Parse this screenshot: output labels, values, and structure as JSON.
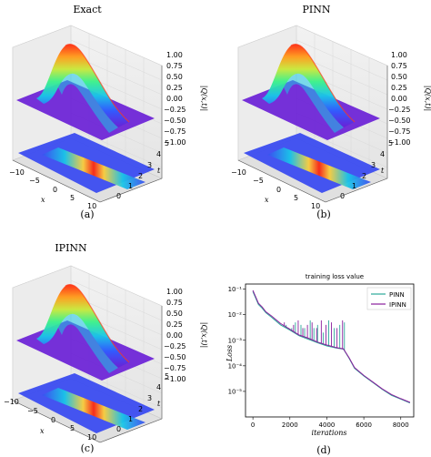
{
  "panels": [
    {
      "title": "Exact",
      "caption": "(a)"
    },
    {
      "title": "PINN",
      "caption": "(b)"
    },
    {
      "title": "IPINN",
      "caption": "(c)"
    }
  ],
  "surface_axes": {
    "x_label": "x",
    "t_label": "t",
    "z_label": "|Q(x,t)|",
    "x_ticks": [
      "−10",
      "−5",
      "0",
      "5",
      "10"
    ],
    "t_ticks": [
      "0",
      "1",
      "2",
      "3",
      "4",
      "5"
    ],
    "z_ticks": [
      "1.00",
      "0.75",
      "0.50",
      "0.25",
      "0.00",
      "−0.25",
      "−0.50",
      "−0.75",
      "−1.00"
    ]
  },
  "colors": {
    "pinn": "#2ca89a",
    "ipinn": "#8a1e9c",
    "colormap": [
      "#6a1fd6",
      "#2f5cff",
      "#19c6e8",
      "#3af08a",
      "#c8e83a",
      "#ff9a1a",
      "#ff2a10"
    ]
  },
  "chart_data": {
    "type": "line",
    "title": "training loss value",
    "xlabel": "iterations",
    "ylabel": "Loss",
    "caption": "(d)",
    "xlim": [
      -400,
      8700
    ],
    "ylim_log10": [
      -6,
      -0.8
    ],
    "x_ticks": [
      0,
      2000,
      4000,
      6000,
      8000
    ],
    "y_ticks": [
      {
        "exp": -1,
        "label": "10⁻¹"
      },
      {
        "exp": -2,
        "label": "10⁻²"
      },
      {
        "exp": -3,
        "label": "10⁻³"
      },
      {
        "exp": -4,
        "label": "10⁻⁴"
      },
      {
        "exp": -5,
        "label": "10⁻⁵"
      }
    ],
    "log_scale_y": true,
    "legend_position": "top-right",
    "series": [
      {
        "name": "PINN",
        "color": "#2ca89a",
        "points": [
          [
            0,
            0.08
          ],
          [
            150,
            0.045
          ],
          [
            300,
            0.025
          ],
          [
            500,
            0.018
          ],
          [
            700,
            0.012
          ],
          [
            1000,
            0.008
          ],
          [
            1500,
            0.004
          ],
          [
            2000,
            0.0025
          ],
          [
            2500,
            0.0015
          ],
          [
            3000,
            0.0011
          ],
          [
            3500,
            0.0008
          ],
          [
            4000,
            0.0006
          ],
          [
            4500,
            0.0005
          ],
          [
            4900,
            0.00045
          ],
          [
            5200,
            0.0002
          ],
          [
            5500,
            8e-05
          ],
          [
            6000,
            4e-05
          ],
          [
            6500,
            2.2e-05
          ],
          [
            7000,
            1.2e-05
          ],
          [
            7500,
            7e-06
          ],
          [
            8000,
            5e-06
          ],
          [
            8500,
            3.5e-06
          ]
        ],
        "spikes": [
          [
            1800,
            0.004
          ],
          [
            2100,
            0.003
          ],
          [
            2300,
            0.005
          ],
          [
            2600,
            0.004
          ],
          [
            2800,
            0.003
          ],
          [
            3100,
            0.006
          ],
          [
            3300,
            0.003
          ],
          [
            3500,
            0.004
          ],
          [
            3800,
            0.002
          ],
          [
            4100,
            0.006
          ],
          [
            4400,
            0.003
          ],
          [
            4700,
            0.004
          ],
          [
            4950,
            0.005
          ]
        ]
      },
      {
        "name": "IPINN",
        "color": "#8a1e9c",
        "points": [
          [
            0,
            0.09
          ],
          [
            150,
            0.05
          ],
          [
            300,
            0.028
          ],
          [
            500,
            0.02
          ],
          [
            700,
            0.013
          ],
          [
            1000,
            0.009
          ],
          [
            1500,
            0.0045
          ],
          [
            2000,
            0.0027
          ],
          [
            2500,
            0.0016
          ],
          [
            3000,
            0.0012
          ],
          [
            3500,
            0.00085
          ],
          [
            4000,
            0.00065
          ],
          [
            4500,
            0.00052
          ],
          [
            4900,
            0.00046
          ],
          [
            5200,
            0.00021
          ],
          [
            5500,
            8.5e-05
          ],
          [
            6000,
            4.2e-05
          ],
          [
            6500,
            2.3e-05
          ],
          [
            7000,
            1.25e-05
          ],
          [
            7500,
            7.5e-06
          ],
          [
            8000,
            5.2e-06
          ],
          [
            8500,
            3.7e-06
          ]
        ],
        "spikes": [
          [
            1700,
            0.005
          ],
          [
            1950,
            0.003
          ],
          [
            2200,
            0.004
          ],
          [
            2450,
            0.006
          ],
          [
            2700,
            0.003
          ],
          [
            2950,
            0.004
          ],
          [
            3200,
            0.005
          ],
          [
            3450,
            0.003
          ],
          [
            3700,
            0.006
          ],
          [
            3950,
            0.004
          ],
          [
            4250,
            0.005
          ],
          [
            4550,
            0.003
          ],
          [
            4850,
            0.006
          ]
        ]
      }
    ]
  }
}
